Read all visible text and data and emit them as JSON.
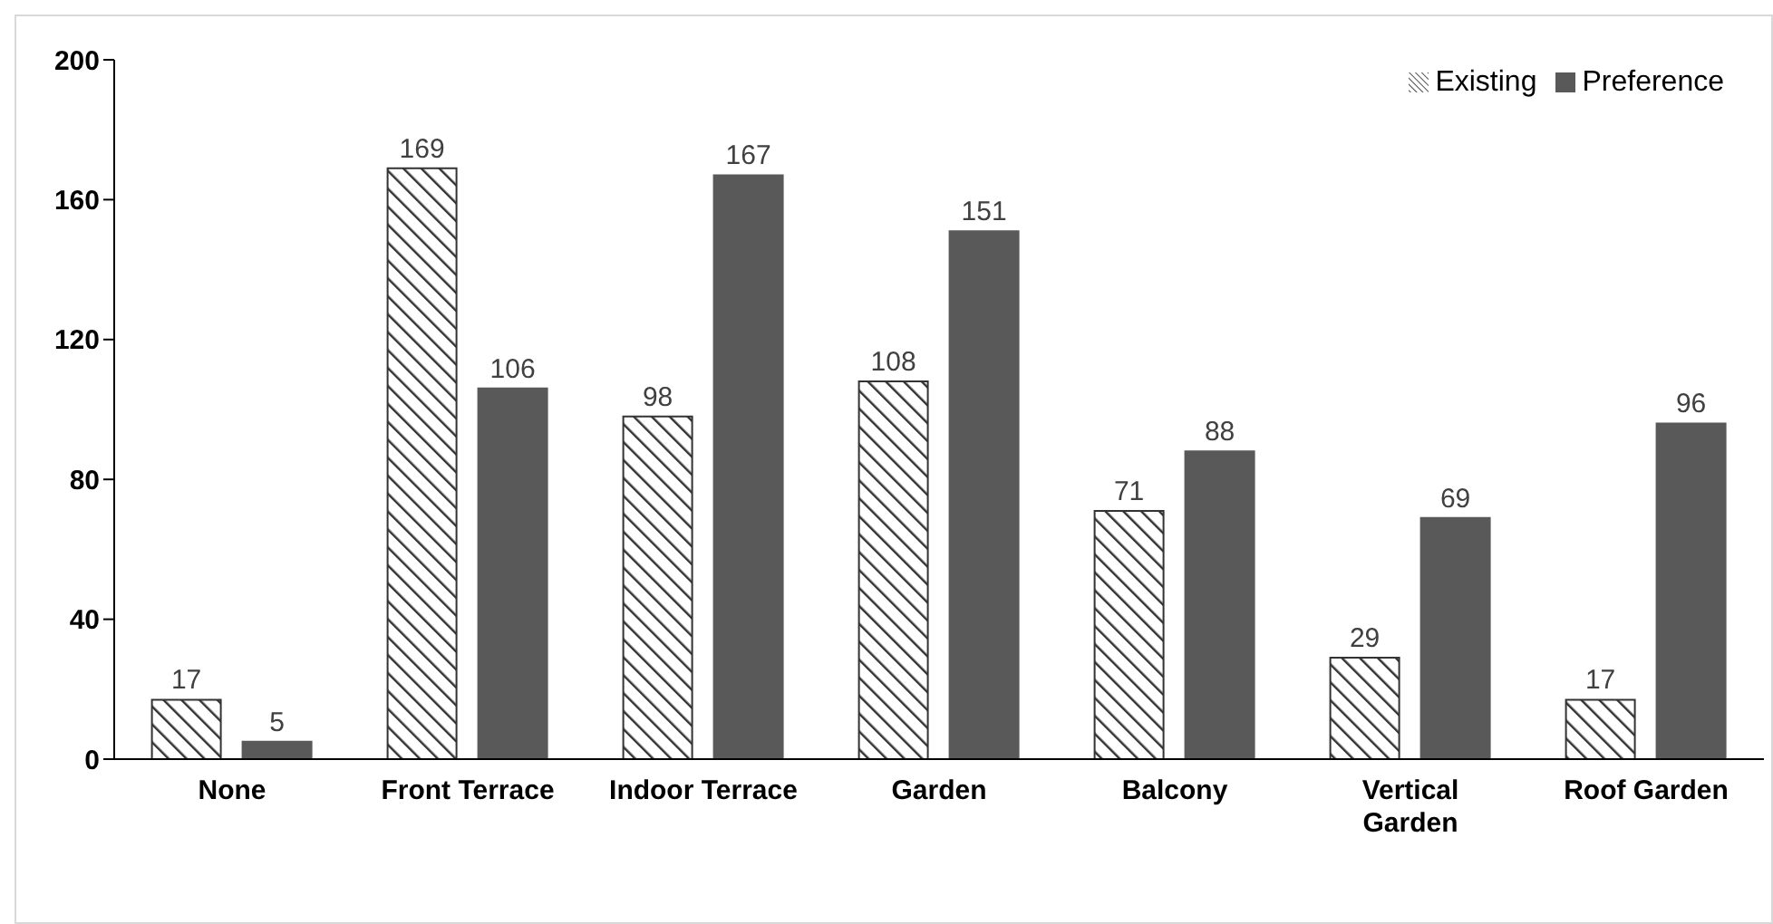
{
  "chart_data": {
    "type": "bar",
    "categories": [
      "None",
      "Front Terrace",
      "Indoor Terrace",
      "Garden",
      "Balcony",
      "Vertical Garden",
      "Roof Garden"
    ],
    "series": [
      {
        "name": "Existing",
        "color": "#333333",
        "values": [
          17,
          169,
          98,
          108,
          71,
          29,
          17
        ]
      },
      {
        "name": "Preference",
        "color": "#595959",
        "values": [
          5,
          106,
          167,
          151,
          88,
          69,
          96
        ]
      }
    ],
    "ylim": [
      0,
      200
    ],
    "yticks": [
      0,
      40,
      80,
      120,
      160,
      200
    ],
    "grid": false,
    "legend": "top right",
    "data_labels": true
  }
}
